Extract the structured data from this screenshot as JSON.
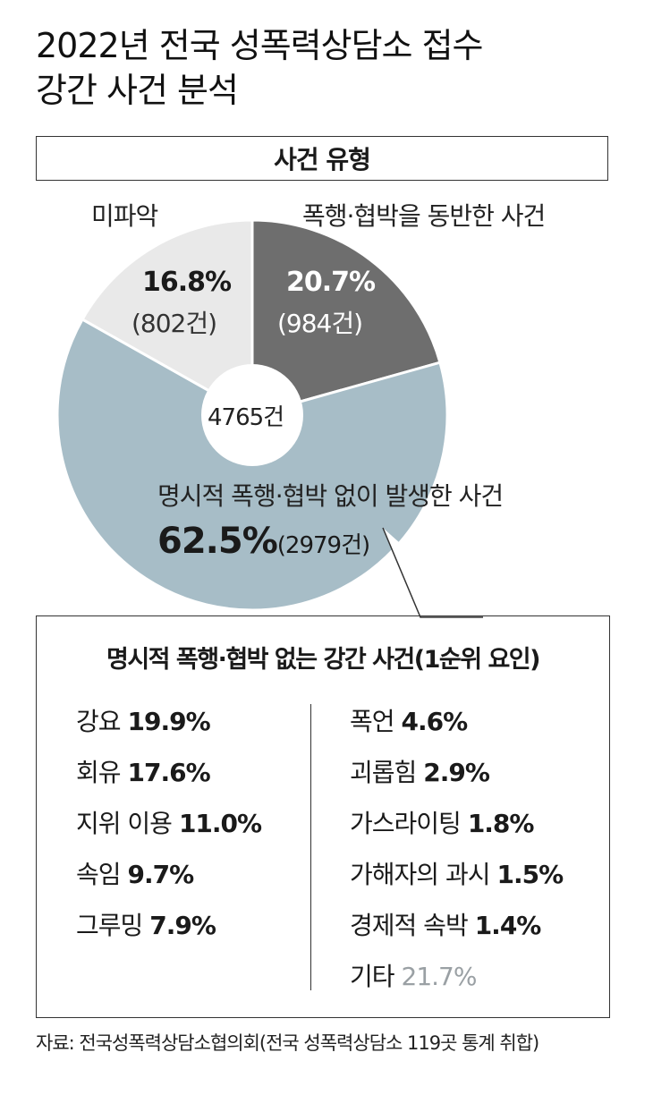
{
  "title_line1": "2022년 전국 성폭력상담소 접수",
  "title_line2": "강간 사건 분석",
  "section_label": "사건 유형",
  "chart_data": {
    "type": "pie",
    "title": "2022년 전국 성폭력상담소 접수 강간 사건 분석",
    "subtitle": "사건 유형",
    "center_label": "4765건",
    "slices": [
      {
        "label": "폭행·협박을 동반한 사건",
        "percent_label": "20.7%",
        "count_label": "(984건)",
        "value": 984,
        "color": "#6e6e6e"
      },
      {
        "label": "명시적 폭행·협박 없이 발생한 사건",
        "percent_label": "62.5%",
        "count_label": "(2979건)",
        "value": 2979,
        "color": "#a7bdc7"
      },
      {
        "label": "미파악",
        "percent_label": "16.8%",
        "count_label": "(802건)",
        "value": 802,
        "color": "#e9e9e9"
      }
    ]
  },
  "detail": {
    "title": "명시적 폭행·협박 없는 강간 사건(1순위 요인)",
    "left": [
      {
        "label": "강요",
        "value": "19.9%"
      },
      {
        "label": "회유",
        "value": "17.6%"
      },
      {
        "label": "지위 이용",
        "value": "11.0%"
      },
      {
        "label": "속임",
        "value": "9.7%"
      },
      {
        "label": "그루밍",
        "value": "7.9%"
      }
    ],
    "right": [
      {
        "label": "폭언",
        "value": "4.6%"
      },
      {
        "label": "괴롭힘",
        "value": "2.9%"
      },
      {
        "label": "가스라이팅",
        "value": "1.8%"
      },
      {
        "label": "가해자의 과시",
        "value": "1.5%"
      },
      {
        "label": "경제적 속박",
        "value": "1.4%"
      },
      {
        "label": "기타",
        "value": "21.7%"
      }
    ]
  },
  "source": "자료: 전국성폭력상담소협의회(전국 성폭력상담소 119곳 통계 취합)"
}
